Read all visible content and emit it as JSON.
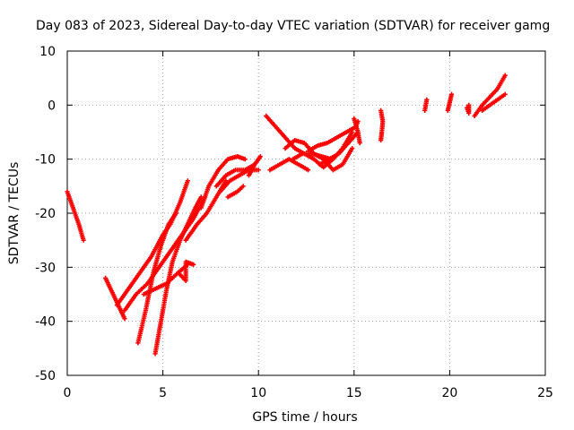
{
  "chart_data": {
    "type": "scatter",
    "title": "Day 083 of 2023, Sidereal Day-to-day VTEC variation (SDTVAR) for receiver gamg",
    "xlabel": "GPS time / hours",
    "ylabel": "SDTVAR / TECUs",
    "xlim": [
      0,
      25
    ],
    "ylim": [
      -50,
      10
    ],
    "x_ticks": [
      "0",
      "5",
      "10",
      "15",
      "20",
      "25"
    ],
    "y_ticks": [
      "10",
      "0",
      "-10",
      "-20",
      "-30",
      "-40",
      "-50"
    ],
    "grid": true,
    "marker": "+",
    "color": "#ff0000",
    "tracks": [
      [
        [
          0.0,
          -16
        ],
        [
          0.3,
          -19
        ],
        [
          0.6,
          -22
        ],
        [
          0.85,
          -25
        ]
      ],
      [
        [
          2.0,
          -32
        ],
        [
          2.4,
          -35
        ],
        [
          2.8,
          -38
        ],
        [
          3.0,
          -39.5
        ]
      ],
      [
        [
          2.6,
          -37
        ],
        [
          3.2,
          -34
        ],
        [
          3.8,
          -31
        ],
        [
          4.4,
          -28
        ],
        [
          5.0,
          -24
        ],
        [
          5.4,
          -22
        ],
        [
          5.9,
          -18
        ],
        [
          6.3,
          -14
        ]
      ],
      [
        [
          3.0,
          -38
        ],
        [
          3.6,
          -35
        ],
        [
          4.2,
          -33
        ],
        [
          4.8,
          -30
        ],
        [
          5.4,
          -27
        ],
        [
          6.0,
          -24
        ],
        [
          6.6,
          -21
        ],
        [
          7.2,
          -17
        ]
      ],
      [
        [
          3.7,
          -44
        ],
        [
          4.1,
          -38
        ],
        [
          4.5,
          -31
        ],
        [
          4.9,
          -26
        ],
        [
          5.3,
          -22
        ],
        [
          5.7,
          -20
        ]
      ],
      [
        [
          4.6,
          -46
        ],
        [
          4.9,
          -40
        ],
        [
          5.2,
          -34
        ],
        [
          5.5,
          -29
        ],
        [
          5.9,
          -25
        ],
        [
          6.3,
          -22
        ],
        [
          6.7,
          -19
        ],
        [
          7.0,
          -17
        ]
      ],
      [
        [
          4.0,
          -35
        ],
        [
          4.6,
          -34
        ],
        [
          5.2,
          -33
        ],
        [
          5.8,
          -31
        ],
        [
          6.3,
          -29.5
        ]
      ],
      [
        [
          5.8,
          -31
        ],
        [
          6.2,
          -32.5
        ],
        [
          6.2,
          -29
        ],
        [
          6.6,
          -29.5
        ]
      ],
      [
        [
          6.2,
          -25
        ],
        [
          6.8,
          -22
        ],
        [
          7.3,
          -20
        ],
        [
          7.8,
          -17
        ],
        [
          8.3,
          -14
        ]
      ],
      [
        [
          7.0,
          -19
        ],
        [
          7.4,
          -15
        ],
        [
          7.9,
          -12
        ],
        [
          8.4,
          -10
        ],
        [
          8.9,
          -9.5
        ],
        [
          9.3,
          -10
        ]
      ],
      [
        [
          7.8,
          -15
        ],
        [
          8.3,
          -13
        ],
        [
          8.8,
          -12
        ],
        [
          9.3,
          -12
        ],
        [
          9.8,
          -11
        ]
      ],
      [
        [
          8.0,
          -16
        ],
        [
          8.5,
          -14
        ],
        [
          9.0,
          -13
        ],
        [
          9.5,
          -12
        ],
        [
          10.0,
          -12
        ]
      ],
      [
        [
          8.4,
          -17
        ],
        [
          8.9,
          -16
        ],
        [
          9.2,
          -15
        ]
      ],
      [
        [
          9.5,
          -13
        ],
        [
          9.8,
          -11
        ],
        [
          10.1,
          -9.5
        ]
      ],
      [
        [
          10.4,
          -2
        ],
        [
          10.9,
          -4
        ],
        [
          11.4,
          -6
        ],
        [
          11.9,
          -8
        ],
        [
          12.4,
          -9
        ],
        [
          12.9,
          -10
        ],
        [
          13.4,
          -11.5
        ],
        [
          13.9,
          -10
        ],
        [
          14.4,
          -8
        ],
        [
          14.9,
          -5
        ]
      ],
      [
        [
          10.6,
          -12
        ],
        [
          11.1,
          -11
        ],
        [
          11.6,
          -10
        ],
        [
          12.1,
          -11
        ],
        [
          12.6,
          -12
        ]
      ],
      [
        [
          11.4,
          -8
        ],
        [
          11.9,
          -6.5
        ],
        [
          12.4,
          -7
        ],
        [
          12.9,
          -9
        ],
        [
          13.4,
          -10
        ],
        [
          13.9,
          -12
        ],
        [
          14.4,
          -11
        ],
        [
          14.9,
          -8
        ]
      ],
      [
        [
          11.8,
          -10
        ],
        [
          12.3,
          -9
        ],
        [
          12.8,
          -9
        ],
        [
          13.3,
          -9.5
        ],
        [
          13.8,
          -10
        ]
      ],
      [
        [
          12.6,
          -8.5
        ],
        [
          13.1,
          -7.5
        ],
        [
          13.6,
          -7
        ],
        [
          14.1,
          -6
        ],
        [
          14.6,
          -5
        ],
        [
          15.1,
          -4
        ],
        [
          15.2,
          -3
        ]
      ],
      [
        [
          13.2,
          -11
        ],
        [
          13.7,
          -10
        ],
        [
          14.2,
          -9
        ],
        [
          14.7,
          -7
        ],
        [
          15.2,
          -5
        ]
      ],
      [
        [
          15.0,
          -2.5
        ],
        [
          15.2,
          -5
        ],
        [
          15.3,
          -7
        ]
      ],
      [
        [
          16.4,
          -1
        ],
        [
          16.5,
          -3
        ],
        [
          16.45,
          -5
        ],
        [
          16.4,
          -6.5
        ]
      ],
      [
        [
          18.7,
          -1
        ],
        [
          18.8,
          1
        ]
      ],
      [
        [
          19.9,
          -1
        ],
        [
          20.0,
          0.5
        ],
        [
          20.1,
          2
        ]
      ],
      [
        [
          20.9,
          -0.5
        ],
        [
          21.0,
          -1.5
        ],
        [
          21.0,
          0
        ]
      ],
      [
        [
          21.3,
          -2
        ],
        [
          21.7,
          0
        ],
        [
          22.1,
          1.5
        ],
        [
          22.5,
          3
        ],
        [
          22.9,
          5.5
        ]
      ],
      [
        [
          21.7,
          -1
        ],
        [
          22.1,
          0
        ],
        [
          22.5,
          1
        ],
        [
          22.9,
          2
        ]
      ]
    ]
  }
}
